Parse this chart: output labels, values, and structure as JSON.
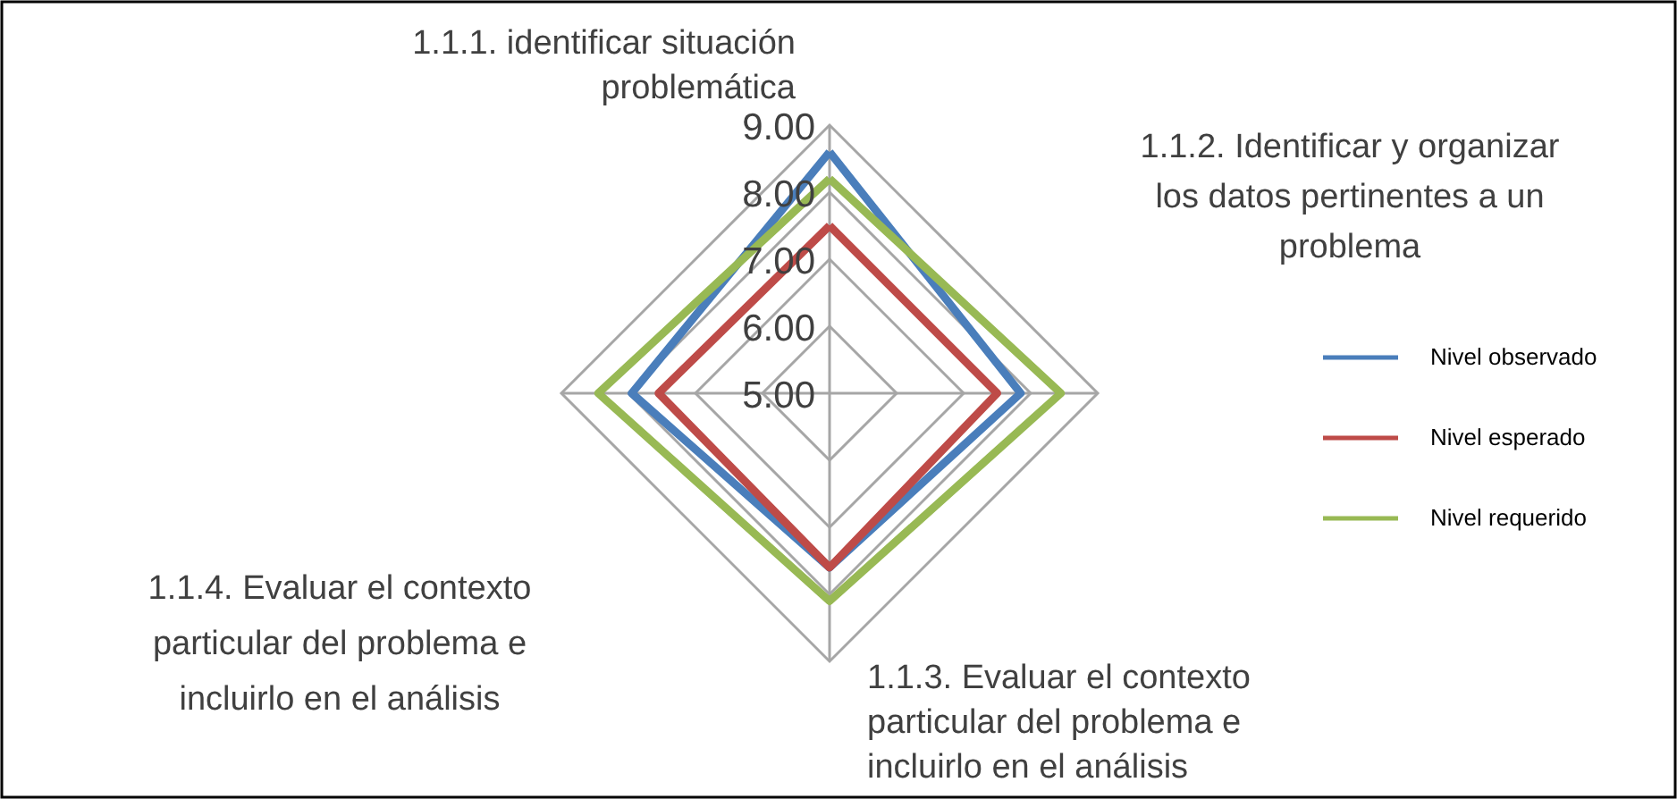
{
  "chart_data": {
    "type": "radar",
    "categories": [
      "1.1.1. identificar situación problemática",
      "1.1.2. Identificar y organizar los datos pertinentes a un problema",
      "1.1.3. Evaluar el contexto particular del problema e incluirlo en el análisis",
      "1.1.4. Evaluar el contexto particular del problema e incluirlo en el análisis"
    ],
    "series": [
      {
        "name": "Nivel observado",
        "color": "#4a7ebb",
        "values": [
          8.6,
          7.85,
          7.6,
          7.95
        ]
      },
      {
        "name": "Nivel esperado",
        "color": "#be4b48",
        "values": [
          7.5,
          7.5,
          7.6,
          7.55
        ]
      },
      {
        "name": "Nivel requerido",
        "color": "#98b954",
        "values": [
          8.2,
          8.45,
          8.1,
          8.45
        ]
      }
    ],
    "ylim": [
      5,
      9
    ],
    "yticks": [
      {
        "value": 5,
        "label": "5.00"
      },
      {
        "value": 6,
        "label": "6.00"
      },
      {
        "value": 7,
        "label": "7.00"
      },
      {
        "value": 8,
        "label": "8.00"
      },
      {
        "value": 9,
        "label": "9.00"
      }
    ],
    "grid": true,
    "legend": "right",
    "line_style": "solid",
    "marker": "none"
  }
}
